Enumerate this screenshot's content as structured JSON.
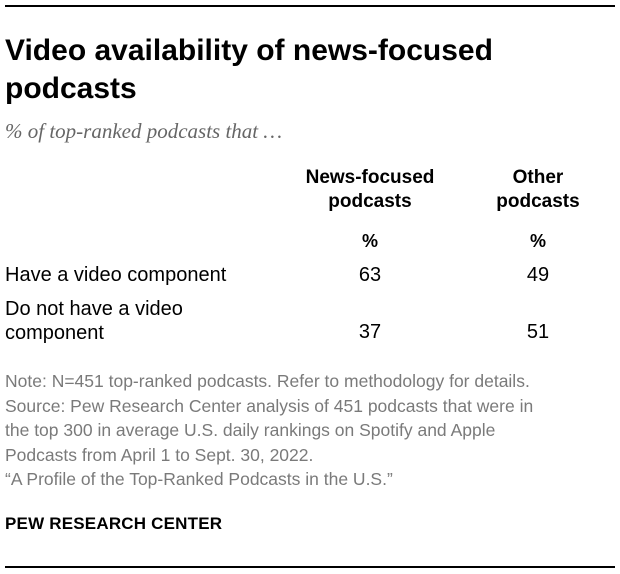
{
  "title": "Video availability of news-focused podcasts",
  "subtitle": "% of top-ranked podcasts that …",
  "chart_data": {
    "type": "table",
    "columns": [
      {
        "label_line1": "News-focused",
        "label_line2": "podcasts",
        "unit": "%"
      },
      {
        "label_line1": "Other",
        "label_line2": "podcasts",
        "unit": "%"
      }
    ],
    "rows": [
      {
        "label_line1": "Have a video component",
        "label_line2": "",
        "values": [
          63,
          49
        ]
      },
      {
        "label_line1": "Do not have a video",
        "label_line2": "component",
        "values": [
          37,
          51
        ]
      }
    ]
  },
  "notes": [
    "Note: N=451 top-ranked podcasts. Refer to methodology for details.",
    "Source: Pew Research Center analysis of 451 podcasts that were in",
    "the top 300 in average U.S. daily rankings on Spotify and Apple",
    "Podcasts from April 1 to Sept. 30, 2022.",
    "“A Profile of the Top-Ranked Podcasts in the U.S.”"
  ],
  "brand": "PEW RESEARCH CENTER"
}
